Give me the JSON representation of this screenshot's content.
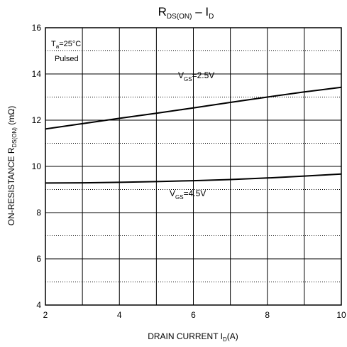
{
  "chart_data": {
    "type": "line",
    "title": {
      "main": "R",
      "sub": "DS(ON)",
      "tail": " – I",
      "tail_sub": "D"
    },
    "xlabel": {
      "main": "DRAIN CURRENT I",
      "sub": "D",
      "tail": "(A)"
    },
    "ylabel": {
      "main": "ON-RESISTANCE R",
      "sub": "DS(ON)",
      "tail": " (mΩ)"
    },
    "xlim": [
      2,
      10
    ],
    "ylim": [
      4,
      16
    ],
    "x_ticks": [
      2,
      4,
      6,
      8,
      10
    ],
    "y_ticks": [
      4,
      6,
      8,
      10,
      12,
      14,
      16
    ],
    "x_tick_labels": [
      "2",
      "4",
      "6",
      "8",
      "10"
    ],
    "y_tick_labels": [
      "4",
      "6",
      "8",
      "10",
      "12",
      "14",
      "16"
    ],
    "grid": true,
    "conditions": {
      "ta": {
        "main": "T",
        "sub": "a",
        "tail": "=25°C"
      },
      "pulsed": "Pulsed"
    },
    "series": [
      {
        "label": {
          "main": "V",
          "sub": "GS",
          "tail": "=2.5V"
        },
        "x": [
          2,
          3,
          4,
          5,
          6,
          7,
          8,
          9,
          10
        ],
        "y": [
          11.62,
          11.85,
          12.08,
          12.3,
          12.53,
          12.77,
          13.0,
          13.22,
          13.42
        ]
      },
      {
        "label": {
          "main": "V",
          "sub": "GS",
          "tail": "=4.5V"
        },
        "x": [
          2,
          3,
          4,
          5,
          6,
          7,
          8,
          9,
          10
        ],
        "y": [
          9.28,
          9.29,
          9.31,
          9.34,
          9.38,
          9.43,
          9.5,
          9.58,
          9.67
        ]
      }
    ]
  }
}
